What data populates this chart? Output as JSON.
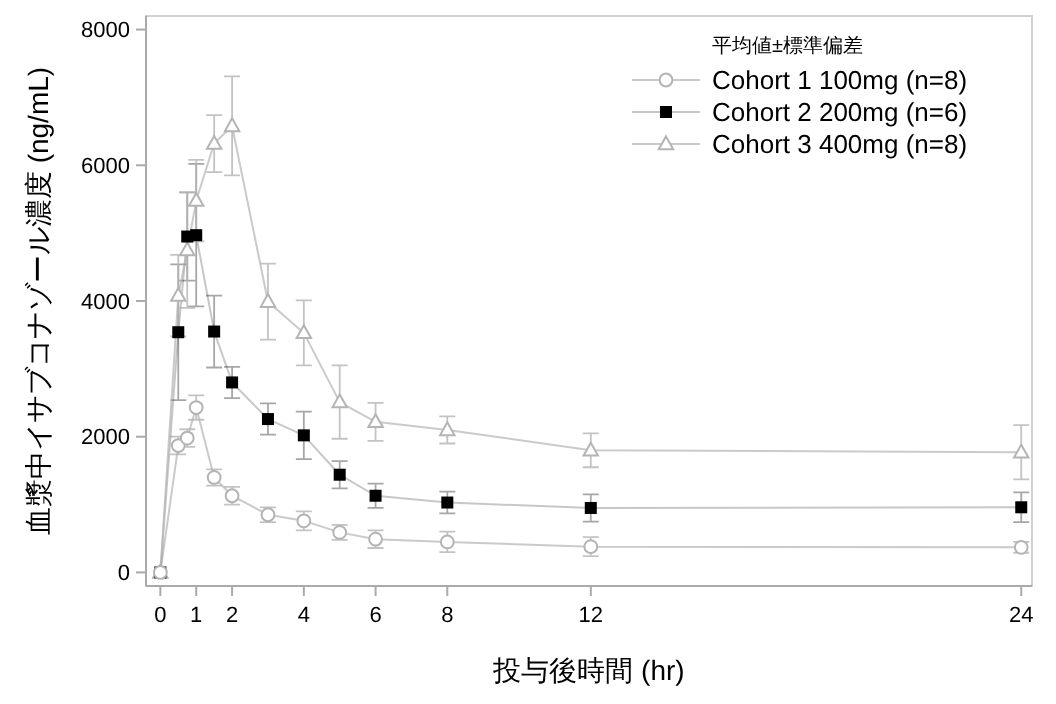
{
  "chart_data": {
    "type": "line",
    "xlabel": "投与後時間 (hr)",
    "ylabel": "血漿中イサブコナゾール濃度 (ng/mL)",
    "legend_title": "平均値±標準偏差",
    "legend": "top right",
    "grid": false,
    "x": [
      0,
      0.5,
      0.75,
      1,
      1.5,
      2,
      3,
      4,
      5,
      6,
      8,
      12,
      24
    ],
    "xlim": [
      -0.4,
      24.3
    ],
    "xticks": [
      0,
      1,
      2,
      4,
      6,
      8,
      12,
      24
    ],
    "ylim": [
      -200,
      8200
    ],
    "yticks": [
      0,
      2000,
      4000,
      6000,
      8000
    ],
    "series": [
      {
        "name": "Cohort 1 100mg (n=8)",
        "color": "#b4b4b4",
        "marker": "circle",
        "values": [
          0,
          1870,
          1980,
          2430,
          1400,
          1130,
          850,
          760,
          590,
          490,
          450,
          380,
          370
        ],
        "errors": [
          null,
          130,
          130,
          180,
          120,
          130,
          110,
          140,
          110,
          130,
          150,
          140,
          80
        ]
      },
      {
        "name": "Cohort 2 200mg (n=6)",
        "color": "#000000",
        "marker": "square",
        "values": [
          0,
          3540,
          4950,
          4970,
          3550,
          2800,
          2260,
          2020,
          1440,
          1130,
          1030,
          950,
          960
        ],
        "errors": [
          null,
          1000,
          650,
          1050,
          530,
          230,
          230,
          350,
          200,
          180,
          160,
          200,
          220
        ]
      },
      {
        "name": "Cohort 3 400mg (n=8)",
        "color": "#b4b4b4",
        "marker": "triangle",
        "values": [
          0,
          4080,
          4750,
          5480,
          6320,
          6580,
          3990,
          3530,
          2510,
          2220,
          2100,
          1800,
          1770
        ],
        "errors": [
          null,
          600,
          850,
          600,
          420,
          730,
          560,
          480,
          540,
          280,
          200,
          250,
          400
        ]
      }
    ]
  }
}
